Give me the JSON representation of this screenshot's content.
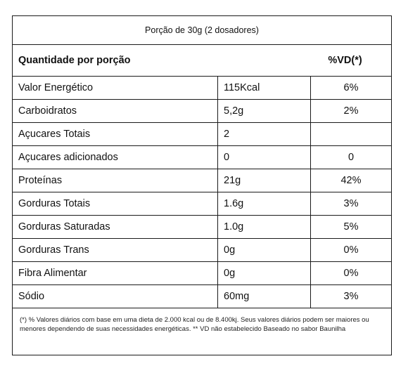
{
  "serving": "Porção de 30g (2 dosadores)",
  "header": {
    "left": "Quantidade por porção",
    "right": "%VD(*)"
  },
  "rows": [
    {
      "name": "Valor Energético",
      "amount": "115Kcal",
      "vd": "6%"
    },
    {
      "name": "Carboidratos",
      "amount": "5,2g",
      "vd": "2%"
    },
    {
      "name": "Açucares Totais",
      "amount": "2",
      "vd": ""
    },
    {
      "name": "Açucares adicionados",
      "amount": "0",
      "vd": "0"
    },
    {
      "name": "Proteínas",
      "amount": "21g",
      "vd": "42%"
    },
    {
      "name": "Gorduras Totais",
      "amount": "1.6g",
      "vd": "3%"
    },
    {
      "name": "Gorduras Saturadas",
      "amount": "1.0g",
      "vd": "5%"
    },
    {
      "name": "Gorduras Trans",
      "amount": "0g",
      "vd": "0%"
    },
    {
      "name": "Fibra Alimentar",
      "amount": "0g",
      "vd": "0%"
    },
    {
      "name": "Sódio",
      "amount": "60mg",
      "vd": "3%"
    }
  ],
  "footnote": "(*) % Valores diários com base em uma dieta de 2.000 kcal ou de 8.400kj. Seus valores diários podem ser maiores ou menores dependendo de suas necessidades energéticas. ** VD não estabelecido Baseado no sabor Baunilha"
}
